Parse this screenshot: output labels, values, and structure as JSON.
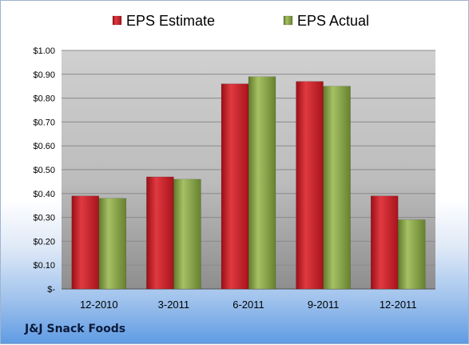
{
  "chart_data": {
    "type": "bar",
    "categories": [
      "12-2010",
      "3-2011",
      "6-2011",
      "9-2011",
      "12-2011"
    ],
    "series": [
      {
        "name": "EPS Estimate",
        "values": [
          0.39,
          0.47,
          0.86,
          0.87,
          0.39
        ],
        "color": "#c8202b"
      },
      {
        "name": "EPS Actual",
        "values": [
          0.38,
          0.46,
          0.89,
          0.85,
          0.29
        ],
        "color": "#8aa84a"
      }
    ],
    "ylim": [
      0,
      1.0
    ],
    "y_ticks": [
      "$-",
      "$0.10",
      "$0.20",
      "$0.30",
      "$0.40",
      "$0.50",
      "$0.60",
      "$0.70",
      "$0.80",
      "$0.90",
      "$1.00"
    ],
    "grid": true,
    "legend_position": "top"
  },
  "footer": {
    "company": "J&J Snack Foods"
  }
}
